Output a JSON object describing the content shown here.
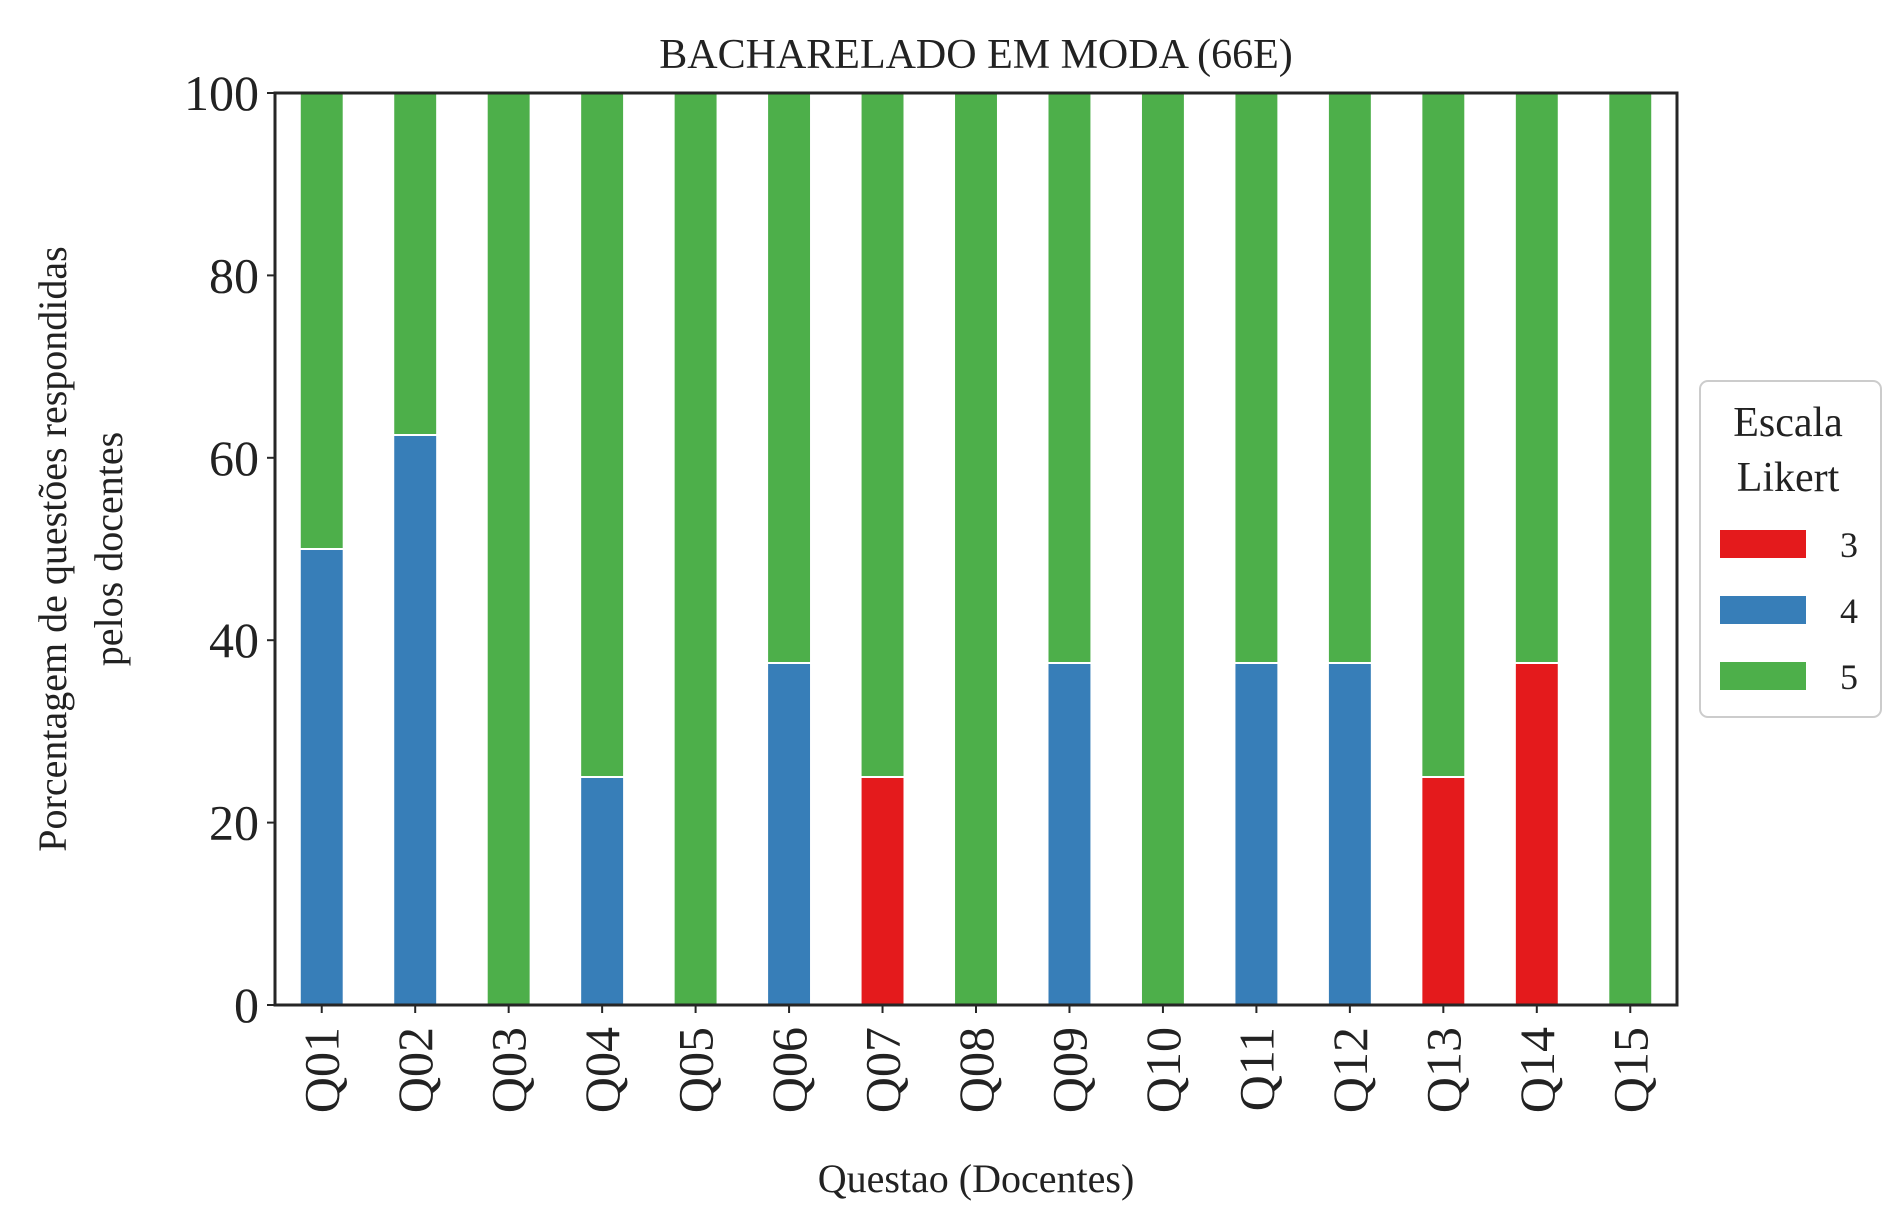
{
  "chart_data": {
    "type": "bar",
    "stacked": true,
    "title": "BACHARELADO EM MODA (66E)",
    "xlabel": "Questao (Docentes)",
    "ylabel_lines": [
      "Porcentagem de questões respondidas",
      "pelos docentes"
    ],
    "ylim": [
      0,
      100
    ],
    "yticks": [
      "0",
      "20",
      "40",
      "60",
      "80",
      "100"
    ],
    "grid": false,
    "legend_placement": "right",
    "legend": {
      "title_lines": [
        "Escala",
        "Likert"
      ],
      "entries": [
        "3",
        "4",
        "5"
      ]
    },
    "categories": [
      "Q01",
      "Q02",
      "Q03",
      "Q04",
      "Q05",
      "Q06",
      "Q07",
      "Q08",
      "Q09",
      "Q10",
      "Q11",
      "Q12",
      "Q13",
      "Q14",
      "Q15"
    ],
    "series": [
      {
        "name": "3",
        "color": "#e41a1c",
        "values": [
          0,
          0,
          0,
          0,
          0,
          0,
          25,
          0,
          0,
          0,
          0,
          0,
          25,
          37.5,
          0
        ]
      },
      {
        "name": "4",
        "color": "#377eb8",
        "values": [
          50,
          62.5,
          0,
          25,
          0,
          37.5,
          0,
          0,
          37.5,
          0,
          37.5,
          37.5,
          0,
          0,
          0
        ]
      },
      {
        "name": "5",
        "color": "#4daf4a",
        "values": [
          50,
          37.5,
          100,
          75,
          100,
          62.5,
          75,
          100,
          62.5,
          100,
          62.5,
          62.5,
          75,
          62.5,
          100
        ]
      }
    ]
  }
}
